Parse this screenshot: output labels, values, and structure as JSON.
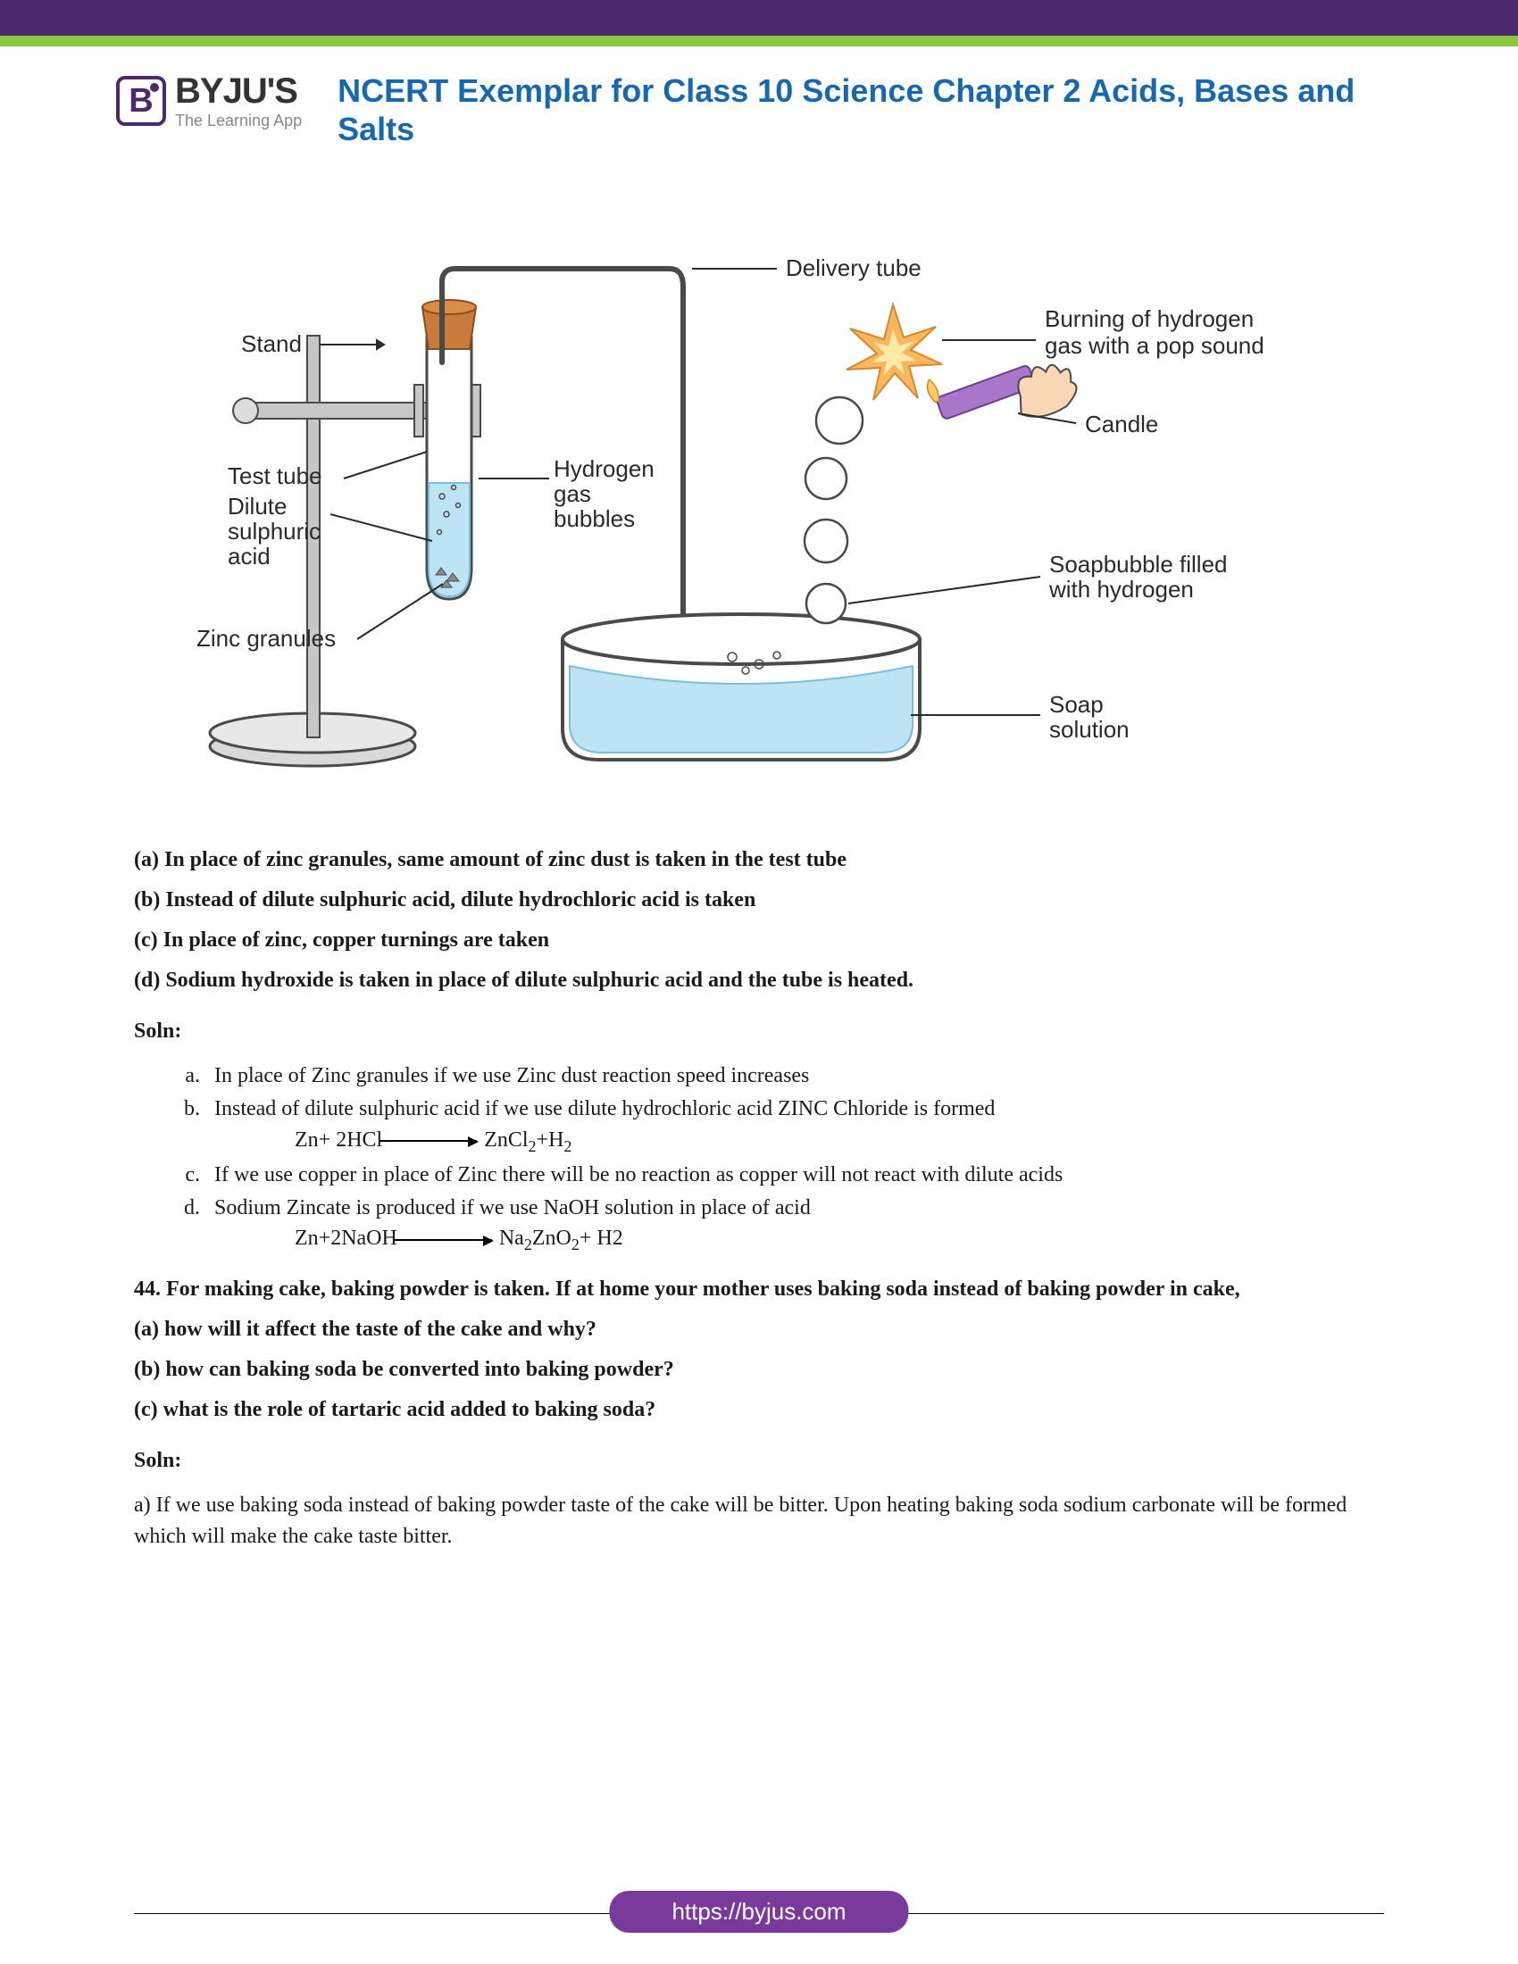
{
  "branding": {
    "logo_letter": "B",
    "logo_name": "BYJU'S",
    "logo_tag": "The Learning App"
  },
  "page_title": "NCERT Exemplar for Class 10 Science Chapter 2 Acids, Bases and Salts",
  "diagram": {
    "labels": {
      "delivery_tube": "Delivery tube",
      "stand": "Stand",
      "burning": "Burning of hydrogen gas with a pop sound",
      "candle": "Candle",
      "test_tube": "Test tube",
      "dilute_acid_l1": "Dilute",
      "dilute_acid_l2": "sulphuric",
      "dilute_acid_l3": "acid",
      "hydrogen_l1": "Hydrogen",
      "hydrogen_l2": "gas",
      "hydrogen_l3": "bubbles",
      "zinc_granules": "Zinc granules",
      "soap_bubble_l1": "Soapbubble filled",
      "soap_bubble_l2": "with hydrogen",
      "soap_solution_l1": "Soap",
      "soap_solution_l2": "solution"
    },
    "colors": {
      "stroke": "#4a4a4a",
      "liquid": "#bde4f5",
      "liquid_edge": "#7abfd9",
      "cork": "#c97c3a",
      "zinc": "#8a8a8a",
      "stand_metal": "#b5b5b5",
      "flame_outer": "#f9b65a",
      "flame_inner": "#ffe9a8",
      "candle": "#a877c9",
      "skin": "#f7d7b4",
      "label_line": "#2a2a2a"
    }
  },
  "q43_options": {
    "a": "(a) In place of zinc granules, same amount of zinc dust is taken in the test tube",
    "b": "(b) Instead of dilute sulphuric acid, dilute hydrochloric acid is taken",
    "c": "(c) In place of zinc, copper turnings are taken",
    "d": " (d) Sodium hydroxide is taken in place of dilute sulphuric acid and the tube is heated."
  },
  "soln_label": "Soln:",
  "q43_soln": {
    "a": "In place of Zinc granules if we use Zinc dust reaction speed increases",
    "b": "Instead of dilute sulphuric acid if we use  dilute hydrochloric acid  ZINC Chloride is formed",
    "b_eqn_left": "Zn+ 2HCl",
    "b_eqn_right": " ZnCl",
    "b_eqn_sub1": "2",
    "b_eqn_mid": "+H",
    "b_eqn_sub2": "2",
    "c": "If we use copper in place of Zinc there will be no reaction as copper will not react with dilute acids",
    "d": "Sodium Zincate is produced if we use NaOH solution in place of  acid",
    "d_eqn_left": "Zn+2NaOH",
    "d_eqn_right": " Na",
    "d_eqn_sub1": "2",
    "d_eqn_mid1": "ZnO",
    "d_eqn_sub2": "2",
    "d_eqn_mid2": "+ H2"
  },
  "q44": {
    "stem": "44. For making cake, baking powder is taken. If at home your mother uses baking soda instead of baking powder in cake,",
    "a": "(a) how will it affect the taste of the cake and why?",
    "b": "(b) how can baking soda be converted into baking powder?",
    "c": "(c) what is the role of tartaric acid added to baking soda?"
  },
  "q44_soln_a": "a) If we use baking soda instead of baking powder taste of the cake will be bitter. Upon heating baking soda sodium carbonate will be formed which will make the cake taste bitter.",
  "footer_url": "https://byjus.com"
}
